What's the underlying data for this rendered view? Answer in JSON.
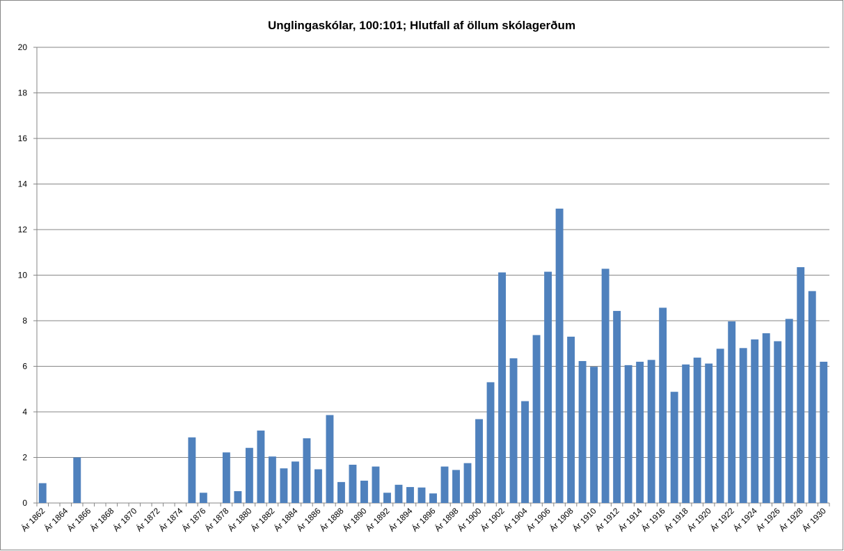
{
  "chart_data": {
    "type": "bar",
    "title": "Unglingaskólar, 100:101; Hlutfall af öllum skólagerðum",
    "categories": [
      "Ár 1862",
      null,
      "Ár 1864",
      null,
      "Ár 1866",
      null,
      "Ár 1868",
      null,
      "Ár 1870",
      null,
      "Ár 1872",
      null,
      "Ár 1874",
      null,
      "Ár 1876",
      null,
      "Ár 1878",
      null,
      "Ár 1880",
      null,
      "Ár 1882",
      null,
      "Ár 1884",
      null,
      "Ár 1886",
      null,
      "Ár 1888",
      null,
      "Ár 1890",
      null,
      "Ár 1892",
      null,
      "Ár 1894",
      null,
      "Ár 1896",
      null,
      "Ár 1898",
      null,
      "Ár 1900",
      null,
      "Ár 1902",
      null,
      "Ár 1904",
      null,
      "Ár 1906",
      null,
      "Ár 1908",
      null,
      "Ár 1910",
      null,
      "Ár 1912",
      null,
      "Ár 1914",
      null,
      "Ár 1916",
      null,
      "Ár 1918",
      null,
      "Ár 1920",
      null,
      "Ár 1922",
      null,
      "Ár 1924",
      null,
      "Ár 1926",
      null,
      "Ár 1928",
      null,
      "Ár 1930"
    ],
    "values": [
      0.87,
      0,
      0,
      2.0,
      0,
      0,
      0,
      0,
      0,
      0,
      0,
      0,
      0,
      2.88,
      0.45,
      0,
      2.22,
      0.52,
      2.42,
      3.18,
      2.04,
      1.52,
      1.82,
      2.84,
      1.48,
      3.86,
      0.92,
      1.68,
      0.98,
      1.6,
      0.45,
      0.8,
      0.7,
      0.68,
      0.42,
      1.6,
      1.45,
      1.75,
      3.68,
      5.3,
      10.12,
      6.35,
      4.47,
      7.37,
      10.15,
      12.92,
      7.3,
      6.23,
      5.98,
      10.28,
      8.43,
      6.05,
      6.2,
      6.28,
      8.57,
      4.88,
      6.08,
      6.38,
      6.12,
      6.77,
      7.97,
      6.8,
      7.18,
      7.45,
      7.1,
      8.08,
      10.35,
      9.3,
      6.2
    ],
    "color": "#4f81bd",
    "ylim": [
      0,
      20
    ],
    "yticks": [
      0,
      2,
      4,
      6,
      8,
      10,
      12,
      14,
      16,
      18,
      20
    ],
    "grid": true
  }
}
